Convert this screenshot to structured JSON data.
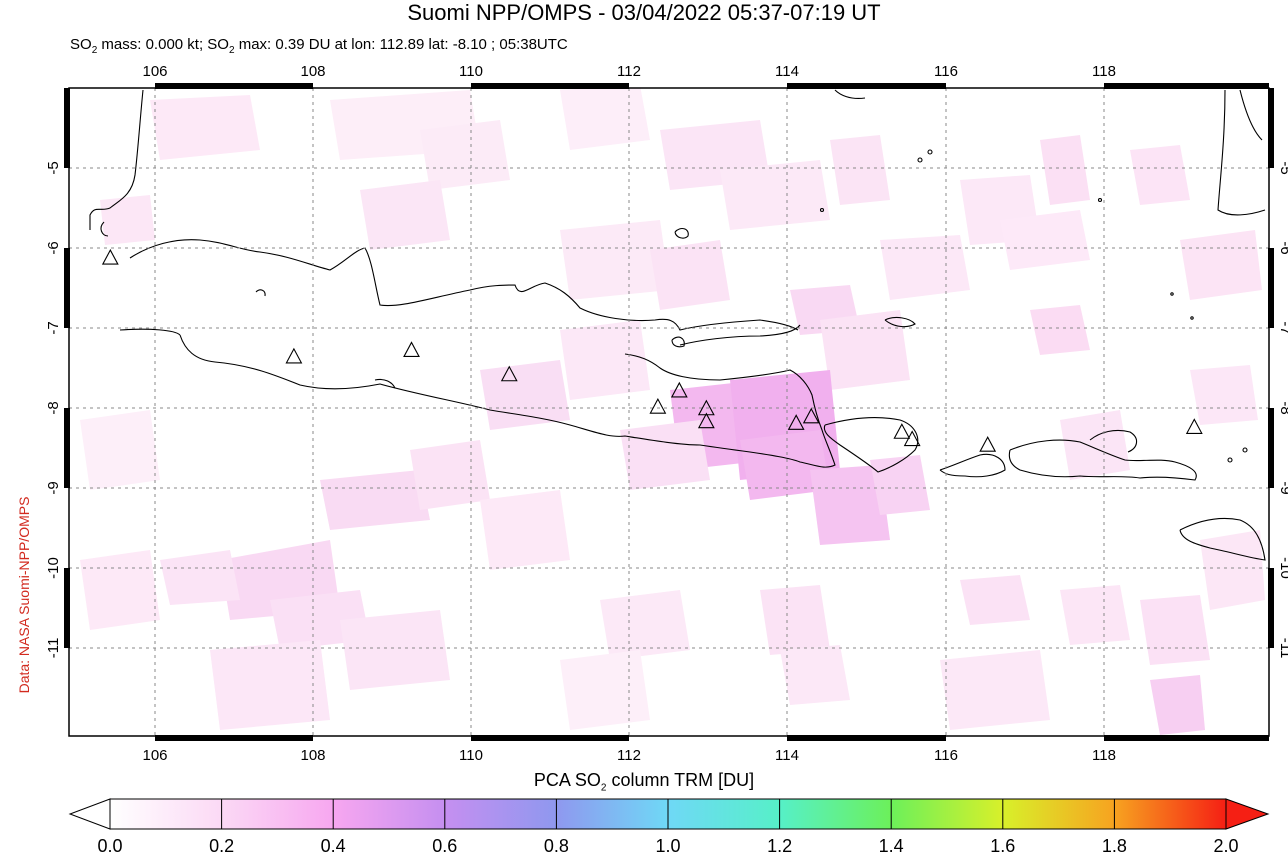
{
  "header": {
    "title": "Suomi NPP/OMPS - 03/04/2022 05:37-07:19 UT",
    "subtitle_pre": "SO",
    "subtitle_sub": "2",
    "subtitle_mid": " mass: 0.000 kt; SO",
    "subtitle_sub2": "2",
    "subtitle_post": " max: 0.39 DU at lon: 112.89 lat: -8.10 ; 05:38UTC"
  },
  "credit": "Data: NASA Suomi-NPP/OMPS",
  "map": {
    "lon_range": [
      104.9,
      120.0
    ],
    "lat_range": [
      -12.0,
      -4.0
    ],
    "lon_ticks": [
      "106",
      "108",
      "110",
      "112",
      "114",
      "116",
      "118"
    ],
    "lat_ticks": [
      "-5",
      "-6",
      "-7",
      "-8",
      "-9",
      "-10",
      "-11"
    ],
    "volcanoes": [
      {
        "lon": 105.42,
        "lat": -6.1
      },
      {
        "lon": 107.73,
        "lat": -7.32
      },
      {
        "lon": 109.21,
        "lat": -7.24
      },
      {
        "lon": 110.44,
        "lat": -7.54
      },
      {
        "lon": 112.31,
        "lat": -7.94
      },
      {
        "lon": 112.58,
        "lat": -7.74
      },
      {
        "lon": 112.92,
        "lat": -7.96
      },
      {
        "lon": 112.92,
        "lat": -8.12
      },
      {
        "lon": 114.05,
        "lat": -8.14
      },
      {
        "lon": 114.24,
        "lat": -8.06
      },
      {
        "lon": 115.38,
        "lat": -8.25
      },
      {
        "lon": 115.51,
        "lat": -8.34
      },
      {
        "lon": 116.46,
        "lat": -8.41
      },
      {
        "lon": 119.06,
        "lat": -8.19
      }
    ],
    "so2_max_location": {
      "lon": 112.89,
      "lat": -8.1,
      "value_du": 0.39
    }
  },
  "colorbar": {
    "title_pre": "PCA SO",
    "title_sub": "2",
    "title_post": " column TRM [DU]",
    "labels": [
      "0.0",
      "0.2",
      "0.4",
      "0.6",
      "0.8",
      "1.0",
      "1.2",
      "1.4",
      "1.6",
      "1.8",
      "2.0"
    ],
    "range": [
      0.0,
      2.0
    ],
    "colors": [
      "#ffffff",
      "#f9c9f3",
      "#f28cf0",
      "#c58ff0",
      "#8b9ff0",
      "#5ad8f5",
      "#52f2c4",
      "#62f25a",
      "#d2f22a",
      "#f7a320",
      "#f51f14"
    ]
  }
}
